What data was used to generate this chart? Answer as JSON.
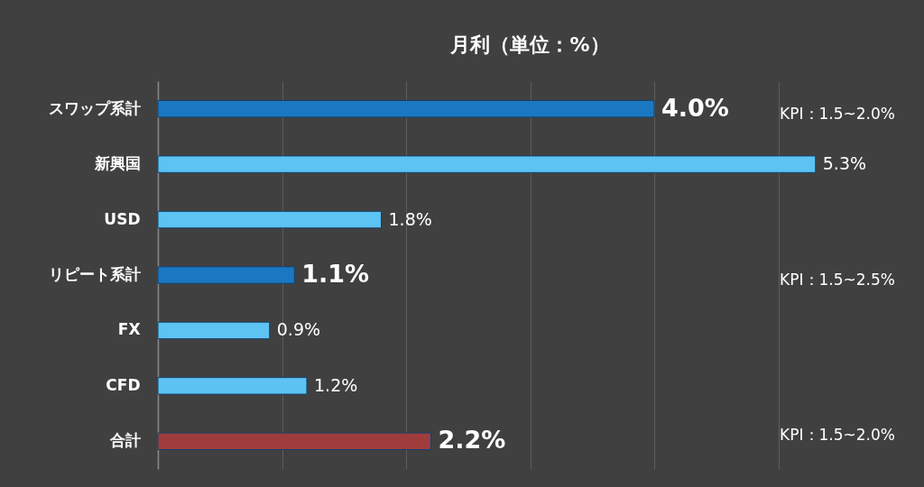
{
  "chart_data": {
    "type": "bar",
    "orientation": "horizontal",
    "title": "月利（単位：%）",
    "categories": [
      "スワップ系計",
      "新興国",
      "USD",
      "リピート系計",
      "FX",
      "CFD",
      "合計"
    ],
    "values": [
      4.0,
      5.3,
      1.8,
      1.1,
      0.9,
      1.2,
      2.2
    ],
    "colors": [
      "#1a78c2",
      "#5cc3f2",
      "#5cc3f2",
      "#1a78c2",
      "#5cc3f2",
      "#5cc3f2",
      "#a03c3c"
    ],
    "value_labels": [
      "4.0%",
      "5.3%",
      "1.8%",
      "1.1%",
      "0.9%",
      "1.2%",
      "2.2%"
    ],
    "xticks": [
      {
        "value": 0,
        "label": null
      },
      {
        "value": 1,
        "label": null
      },
      {
        "value": 2,
        "label": null
      },
      {
        "value": 3,
        "label": null
      },
      {
        "value": 4,
        "label": null
      },
      {
        "value": 5,
        "label": null
      }
    ],
    "grid": "x",
    "tick_labels": "y",
    "annotations": [
      "KPI：1.5~2.0%",
      "KPI：1.5~2.5%",
      "KPI：1.5~2.0%"
    ]
  }
}
